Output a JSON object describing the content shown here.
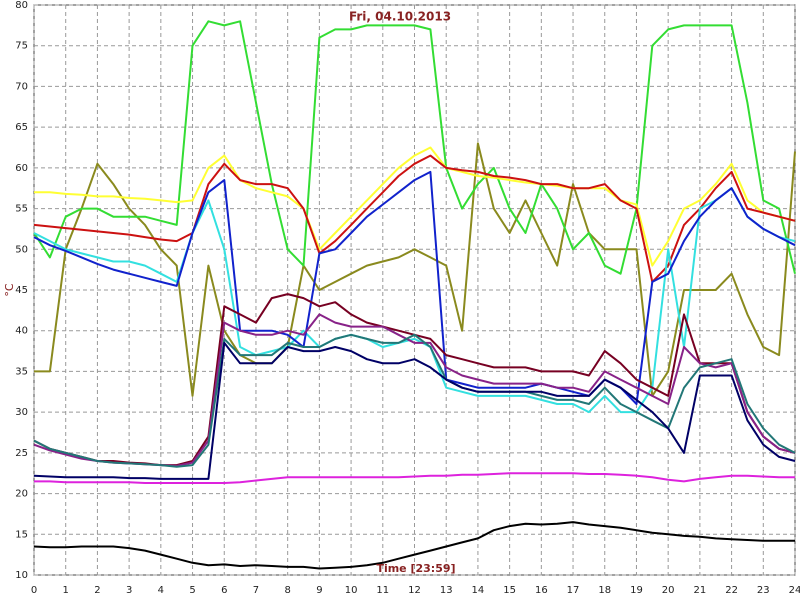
{
  "chart_data": {
    "type": "line",
    "title": "Fri, 04.10.2013",
    "ylabel": "°C",
    "annotation": "Time [23:59]",
    "x": [
      0,
      0.5,
      1,
      1.5,
      2,
      2.5,
      3,
      3.5,
      4,
      4.5,
      5,
      5.5,
      6,
      6.5,
      7,
      7.5,
      8,
      8.5,
      9,
      9.5,
      10,
      10.5,
      11,
      11.5,
      12,
      12.5,
      13,
      13.5,
      14,
      14.5,
      15,
      15.5,
      16,
      16.5,
      17,
      17.5,
      18,
      18.5,
      19,
      19.5,
      20,
      20.5,
      21,
      21.5,
      22,
      22.5,
      23,
      23.5,
      24
    ],
    "xlim": [
      0,
      24
    ],
    "xticks": [
      0,
      1,
      2,
      3,
      4,
      5,
      6,
      7,
      8,
      9,
      10,
      11,
      12,
      13,
      14,
      15,
      16,
      17,
      18,
      19,
      20,
      21,
      22,
      23,
      24
    ],
    "ylim": [
      10,
      80
    ],
    "yticks": [
      10,
      15,
      20,
      25,
      30,
      35,
      40,
      45,
      50,
      55,
      60,
      65,
      70,
      75,
      80
    ],
    "grid": true,
    "series": [
      {
        "color": "#8a8a1e",
        "values": [
          35,
          35,
          50,
          55,
          60.5,
          58,
          55,
          53,
          50,
          48,
          32,
          48,
          40,
          37,
          36,
          36,
          38,
          48,
          45,
          46,
          47,
          48,
          48.5,
          49,
          50,
          49,
          48,
          40,
          63,
          55,
          52,
          56,
          52,
          48,
          58,
          52,
          50,
          50,
          50,
          32,
          35,
          45,
          45,
          45,
          47,
          42,
          38,
          37,
          62
        ]
      },
      {
        "color": "#33dd33",
        "values": [
          52,
          49,
          54,
          55,
          55,
          54,
          54,
          54,
          53.5,
          53,
          75,
          78,
          77.5,
          78,
          68,
          58,
          50,
          48,
          76,
          77,
          77,
          77.5,
          77.5,
          77.5,
          77.5,
          77,
          60,
          55,
          58,
          60,
          55,
          52,
          58,
          55,
          50,
          52,
          48,
          47,
          55,
          75,
          77,
          77.5,
          77.5,
          77.5,
          77.5,
          68,
          56,
          55,
          47
        ]
      },
      {
        "color": "#ffff33",
        "values": [
          57,
          57,
          56.8,
          56.7,
          56.5,
          56.5,
          56.3,
          56.2,
          56,
          55.8,
          56,
          60,
          61.5,
          58.5,
          57.5,
          57,
          56.5,
          55,
          50,
          52,
          54,
          56,
          58,
          60,
          61.5,
          62.5,
          60,
          59.5,
          59,
          58.8,
          58.5,
          58.2,
          58,
          57.8,
          57.5,
          57.5,
          57.5,
          56,
          55.5,
          48,
          51,
          55,
          56,
          58,
          60.5,
          56,
          54.5,
          54,
          53.5
        ]
      },
      {
        "color": "#cc1111",
        "values": [
          53,
          52.8,
          52.6,
          52.4,
          52.2,
          52,
          51.8,
          51.5,
          51.2,
          51,
          52,
          58,
          60.5,
          58.5,
          58,
          58,
          57.5,
          55,
          49.5,
          51,
          53,
          55,
          57,
          59,
          60.5,
          61.5,
          60,
          59.7,
          59.5,
          59,
          58.8,
          58.5,
          58,
          58,
          57.5,
          57.5,
          58,
          56,
          55,
          46,
          48,
          53,
          55,
          57.5,
          59.5,
          55,
          54.5,
          54,
          53.5
        ]
      },
      {
        "color": "#33e0e0",
        "values": [
          52,
          51,
          50,
          49.5,
          49,
          48.5,
          48.5,
          48,
          47,
          46,
          52,
          56,
          50,
          38,
          37,
          37.5,
          38,
          40,
          38,
          39,
          39.5,
          39,
          38,
          38.5,
          39,
          38,
          33,
          32.5,
          32,
          32,
          32,
          32,
          31.5,
          31,
          31,
          30,
          32,
          30,
          30,
          33,
          50,
          38,
          55,
          56,
          57.5,
          54,
          52.5,
          51.5,
          51
        ]
      },
      {
        "color": "#1122cc",
        "values": [
          51.5,
          50.5,
          49.8,
          49,
          48.2,
          47.5,
          47,
          46.5,
          46,
          45.5,
          52,
          57,
          58.5,
          40,
          40,
          40,
          39.5,
          38,
          49.5,
          50,
          52,
          54,
          55.5,
          57,
          58.5,
          59.5,
          34,
          33.5,
          33,
          33,
          33,
          33,
          33.5,
          33,
          32.5,
          32,
          34,
          33,
          31,
          46,
          47,
          51,
          54,
          56,
          57.5,
          54,
          52.5,
          51.5,
          50.5
        ]
      },
      {
        "color": "#770022",
        "values": [
          26.5,
          25.5,
          25,
          24.5,
          24,
          24,
          23.8,
          23.7,
          23.5,
          23.5,
          24,
          27,
          43,
          42,
          41,
          44,
          44.5,
          44,
          43,
          43.5,
          42,
          41,
          40.5,
          40,
          39.5,
          39,
          37,
          36.5,
          36,
          35.5,
          35.5,
          35.5,
          35,
          35,
          35,
          34.5,
          37.5,
          36,
          34,
          33,
          32,
          42,
          36,
          36,
          36,
          30,
          27,
          25.5,
          25
        ]
      },
      {
        "color": "#882288",
        "values": [
          26,
          25.3,
          24.8,
          24.3,
          24,
          23.8,
          23.7,
          23.6,
          23.5,
          23.4,
          23.8,
          26.5,
          41,
          40,
          39.5,
          39.5,
          40,
          39.5,
          42,
          41,
          40.5,
          40.5,
          40.5,
          39.5,
          38.5,
          38.5,
          35.5,
          34.5,
          34,
          33.5,
          33.5,
          33.5,
          33.5,
          33,
          33,
          32.5,
          35,
          34,
          33,
          32,
          31,
          38,
          36,
          35.5,
          36,
          30,
          27,
          25.5,
          25
        ]
      },
      {
        "color": "#227777",
        "values": [
          26.5,
          25.5,
          25,
          24.5,
          24,
          23.8,
          23.7,
          23.6,
          23.5,
          23.3,
          23.5,
          26,
          39,
          37,
          37,
          37,
          38.5,
          38,
          38,
          39,
          39.5,
          39,
          38.5,
          38.5,
          39.5,
          38,
          34,
          33,
          32.5,
          32.5,
          32.5,
          32.5,
          32,
          31.5,
          31.5,
          31,
          33,
          31,
          30,
          29,
          28,
          33,
          35.5,
          36,
          36.5,
          31,
          28,
          26,
          25
        ]
      },
      {
        "color": "#000066",
        "values": [
          22.2,
          22.1,
          22,
          22,
          22,
          22,
          21.9,
          21.9,
          21.8,
          21.8,
          21.8,
          21.8,
          38.5,
          36,
          36,
          36,
          38,
          37.5,
          37.5,
          38,
          37.5,
          36.5,
          36,
          36,
          36.5,
          35.5,
          34,
          33,
          32.5,
          32.5,
          32.5,
          32.5,
          32.5,
          32,
          32,
          32,
          34,
          33,
          31.5,
          30,
          28,
          25,
          34.5,
          34.5,
          34.5,
          29,
          26,
          24.5,
          24
        ]
      },
      {
        "color": "#dd22dd",
        "values": [
          21.5,
          21.5,
          21.4,
          21.4,
          21.4,
          21.4,
          21.4,
          21.3,
          21.3,
          21.3,
          21.3,
          21.3,
          21.3,
          21.4,
          21.6,
          21.8,
          22,
          22,
          22,
          22,
          22,
          22,
          22,
          22,
          22.1,
          22.2,
          22.2,
          22.3,
          22.3,
          22.4,
          22.5,
          22.5,
          22.5,
          22.5,
          22.5,
          22.4,
          22.4,
          22.3,
          22.2,
          22,
          21.7,
          21.5,
          21.8,
          22,
          22.2,
          22.2,
          22.1,
          22,
          22
        ]
      },
      {
        "color": "#000000",
        "values": [
          13.5,
          13.4,
          13.4,
          13.5,
          13.5,
          13.5,
          13.3,
          13,
          12.5,
          12,
          11.5,
          11.2,
          11.3,
          11.1,
          11.2,
          11.1,
          11,
          11,
          10.8,
          10.9,
          11,
          11.2,
          11.5,
          12,
          12.5,
          13,
          13.5,
          14,
          14.5,
          15.5,
          16,
          16.3,
          16.2,
          16.3,
          16.5,
          16.2,
          16,
          15.8,
          15.5,
          15.2,
          15,
          14.8,
          14.7,
          14.5,
          14.4,
          14.3,
          14.2,
          14.2,
          14.2
        ]
      }
    ]
  }
}
